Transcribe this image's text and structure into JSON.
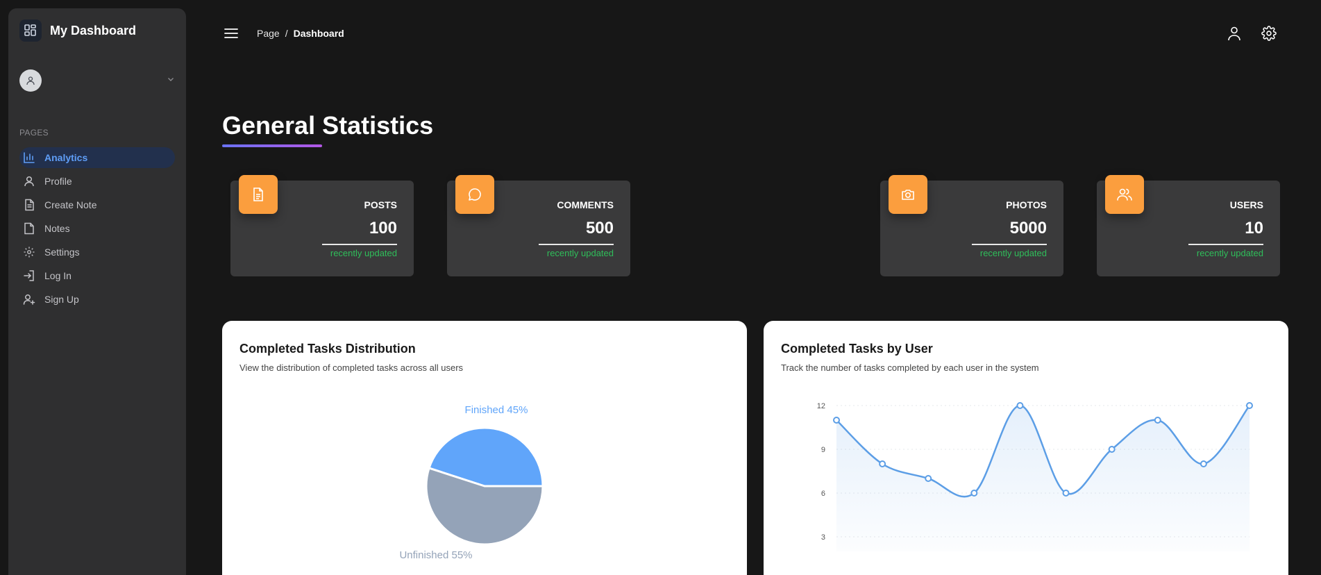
{
  "brand": {
    "title": "My Dashboard",
    "icon": "dashboard-grid-icon"
  },
  "sidebar": {
    "section_label": "PAGES",
    "items": [
      {
        "label": "Analytics",
        "icon": "bar-chart-icon",
        "active": true
      },
      {
        "label": "Profile",
        "icon": "user-icon"
      },
      {
        "label": "Create Note",
        "icon": "document-edit-icon"
      },
      {
        "label": "Notes",
        "icon": "note-icon"
      },
      {
        "label": "Settings",
        "icon": "gear-icon"
      },
      {
        "label": "Log In",
        "icon": "login-icon"
      },
      {
        "label": "Sign Up",
        "icon": "user-plus-icon"
      }
    ]
  },
  "header": {
    "breadcrumb": {
      "page": "Page",
      "separator": "/",
      "current": "Dashboard"
    }
  },
  "main": {
    "title": "General Statistics",
    "stats": [
      {
        "label": "POSTS",
        "value": "100",
        "note": "recently updated",
        "icon": "document-icon"
      },
      {
        "label": "COMMENTS",
        "value": "500",
        "note": "recently updated",
        "icon": "chat-bubble-icon"
      },
      {
        "label": "PHOTOS",
        "value": "5000",
        "note": "recently updated",
        "icon": "camera-icon"
      },
      {
        "label": "USERS",
        "value": "10",
        "note": "recently updated",
        "icon": "users-icon"
      }
    ],
    "pie_card": {
      "title": "Completed Tasks Distribution",
      "subtitle": "View the distribution of completed tasks across all users"
    },
    "line_card": {
      "title": "Completed Tasks by User",
      "subtitle": "Track the number of tasks completed by each user in the system"
    }
  },
  "colors": {
    "accent": "#5f9ef7",
    "stat_icon_bg": "#fb9e3e",
    "recent_green": "#2fbe5a",
    "pie_finished": "#60a5fa",
    "pie_unfinished": "#94a3b8",
    "line": "#5c9ee6"
  },
  "chart_data": [
    {
      "type": "pie",
      "slices": [
        {
          "label": "Finished 45%",
          "value": 45
        },
        {
          "label": "Unfinished 55%",
          "value": 55
        }
      ]
    },
    {
      "type": "line",
      "x": [
        1,
        2,
        3,
        4,
        5,
        6,
        7,
        8,
        9,
        10
      ],
      "values": [
        11,
        8,
        7,
        6,
        12,
        6,
        9,
        11,
        8,
        12
      ],
      "yticks": [
        3,
        6,
        9,
        12
      ],
      "ylim": [
        2,
        12
      ],
      "smooth": true,
      "area_fill": true
    }
  ]
}
